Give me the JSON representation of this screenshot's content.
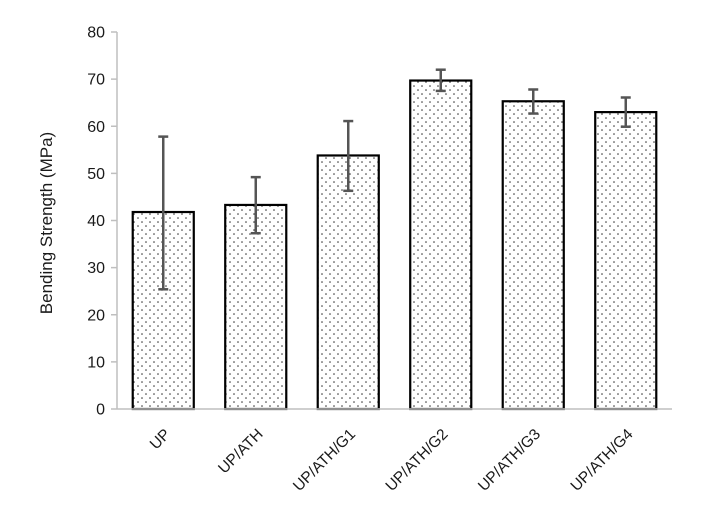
{
  "chart_data": {
    "type": "bar",
    "title": "",
    "xlabel": "",
    "ylabel": "Bending Strength (MPa)",
    "ylim": [
      0,
      80
    ],
    "yticks": [
      0,
      10,
      20,
      30,
      40,
      50,
      60,
      70,
      80
    ],
    "grid": false,
    "legend": "none",
    "fill_pattern": "dotted",
    "bar_color": "#ffffff",
    "bar_edge_color": "#000000",
    "error_bar_color": "#555555",
    "categories": [
      "UP",
      "UP/ATH",
      "UP/ATH/G1",
      "UP/ATH/G2",
      "UP/ATH/G3",
      "UP/ATH/G4"
    ],
    "values": [
      41.8,
      43.3,
      53.8,
      69.7,
      65.3,
      63.0
    ],
    "error_upper": [
      57.8,
      49.2,
      61.1,
      72.0,
      67.8,
      66.1
    ],
    "error_lower": [
      25.4,
      37.3,
      46.3,
      67.5,
      62.7,
      59.9
    ]
  }
}
